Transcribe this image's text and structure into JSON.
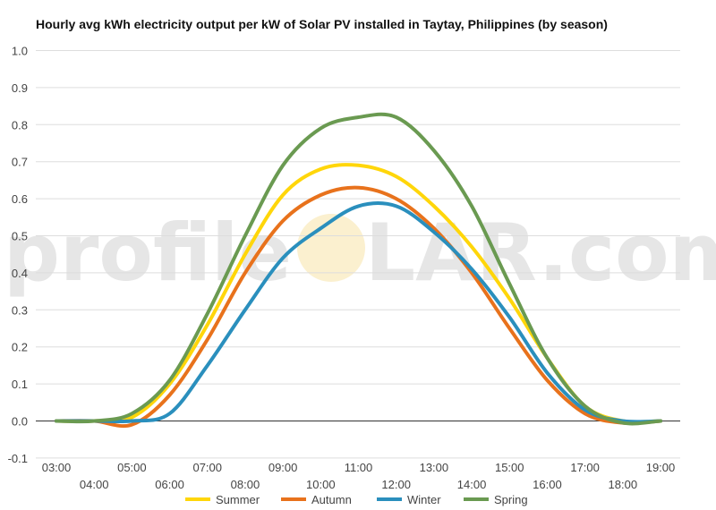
{
  "chart_data": {
    "type": "line",
    "title": "Hourly avg kWh electricity output per kW of Solar PV installed in Taytay, Philippines (by season)",
    "ylim": [
      -0.1,
      1.0
    ],
    "yticks": [
      "1.0",
      "0.9",
      "0.8",
      "0.7",
      "0.6",
      "0.5",
      "0.4",
      "0.3",
      "0.2",
      "0.1",
      "0.0",
      "-0.1"
    ],
    "ytick_values": [
      1.0,
      0.9,
      0.8,
      0.7,
      0.6,
      0.5,
      0.4,
      0.3,
      0.2,
      0.1,
      0.0,
      -0.1
    ],
    "x": [
      "03:00",
      "04:00",
      "05:00",
      "06:00",
      "07:00",
      "08:00",
      "09:00",
      "10:00",
      "11:00",
      "12:00",
      "13:00",
      "14:00",
      "15:00",
      "16:00",
      "17:00",
      "18:00",
      "19:00"
    ],
    "grid": true,
    "legend_position": "bottom",
    "watermark": {
      "prefix": "profile",
      "suffix": "LAR.com"
    },
    "series": [
      {
        "name": "Summer",
        "color": "#ffd60a",
        "values": [
          0,
          0,
          0.01,
          0.1,
          0.26,
          0.45,
          0.61,
          0.68,
          0.69,
          0.66,
          0.58,
          0.47,
          0.33,
          0.17,
          0.04,
          0,
          0
        ]
      },
      {
        "name": "Autumn",
        "color": "#e8721c",
        "values": [
          0,
          0,
          -0.01,
          0.07,
          0.22,
          0.4,
          0.54,
          0.61,
          0.63,
          0.6,
          0.52,
          0.4,
          0.25,
          0.11,
          0.02,
          -0.005,
          0
        ]
      },
      {
        "name": "Winter",
        "color": "#2a8fbd",
        "values": [
          0,
          0,
          0,
          0.02,
          0.15,
          0.3,
          0.44,
          0.52,
          0.58,
          0.58,
          0.51,
          0.41,
          0.28,
          0.13,
          0.03,
          0,
          0
        ]
      },
      {
        "name": "Spring",
        "color": "#6a9a51",
        "values": [
          0,
          0,
          0.02,
          0.11,
          0.29,
          0.5,
          0.69,
          0.79,
          0.82,
          0.82,
          0.73,
          0.58,
          0.37,
          0.17,
          0.04,
          -0.005,
          0
        ]
      }
    ]
  }
}
